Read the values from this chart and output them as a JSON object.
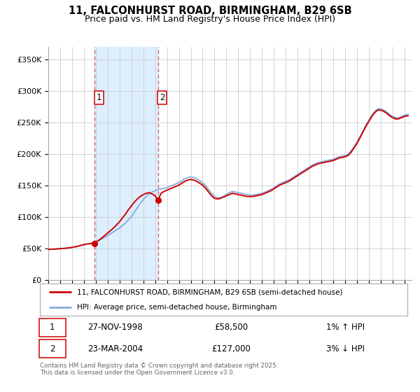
{
  "title": "11, FALCONHURST ROAD, BIRMINGHAM, B29 6SB",
  "subtitle": "Price paid vs. HM Land Registry's House Price Index (HPI)",
  "title_fontsize": 10.5,
  "subtitle_fontsize": 9,
  "background_color": "#ffffff",
  "grid_color": "#cccccc",
  "ylabel_values": [
    "£0",
    "£50K",
    "£100K",
    "£150K",
    "£200K",
    "£250K",
    "£300K",
    "£350K"
  ],
  "ytick_values": [
    0,
    50000,
    100000,
    150000,
    200000,
    250000,
    300000,
    350000
  ],
  "ylim": [
    0,
    370000
  ],
  "xlim_start": 1995.0,
  "xlim_end": 2025.6,
  "sale1_date": 1998.91,
  "sale1_price": 58500,
  "sale1_label": "1",
  "sale2_date": 2004.23,
  "sale2_price": 127000,
  "sale2_label": "2",
  "shade_color": "#ddeeff",
  "dashed_line_color": "#d05555",
  "property_line_color": "#cc0000",
  "hpi_line_color": "#88aadd",
  "legend_property": "11, FALCONHURST ROAD, BIRMINGHAM, B29 6SB (semi-detached house)",
  "legend_hpi": "HPI: Average price, semi-detached house, Birmingham",
  "annotation1_date": "27-NOV-1998",
  "annotation1_price": "£58,500",
  "annotation1_hpi": "1% ↑ HPI",
  "annotation2_date": "23-MAR-2004",
  "annotation2_price": "£127,000",
  "annotation2_hpi": "3% ↓ HPI",
  "footer": "Contains HM Land Registry data © Crown copyright and database right 2025.\nThis data is licensed under the Open Government Licence v3.0.",
  "hpi_data": [
    [
      1995.0,
      49000
    ],
    [
      1995.25,
      49200
    ],
    [
      1995.5,
      49500
    ],
    [
      1995.75,
      49800
    ],
    [
      1996.0,
      50200
    ],
    [
      1996.25,
      50500
    ],
    [
      1996.5,
      51000
    ],
    [
      1996.75,
      51500
    ],
    [
      1997.0,
      52200
    ],
    [
      1997.25,
      53000
    ],
    [
      1997.5,
      54000
    ],
    [
      1997.75,
      55500
    ],
    [
      1998.0,
      56500
    ],
    [
      1998.25,
      57500
    ],
    [
      1998.5,
      58500
    ],
    [
      1998.75,
      59500
    ],
    [
      1999.0,
      61000
    ],
    [
      1999.25,
      63000
    ],
    [
      1999.5,
      65500
    ],
    [
      1999.75,
      68000
    ],
    [
      2000.0,
      71000
    ],
    [
      2000.25,
      74000
    ],
    [
      2000.5,
      77000
    ],
    [
      2000.75,
      80000
    ],
    [
      2001.0,
      83000
    ],
    [
      2001.25,
      87000
    ],
    [
      2001.5,
      91000
    ],
    [
      2001.75,
      96000
    ],
    [
      2002.0,
      101000
    ],
    [
      2002.25,
      108000
    ],
    [
      2002.5,
      115000
    ],
    [
      2002.75,
      122000
    ],
    [
      2003.0,
      128000
    ],
    [
      2003.25,
      133000
    ],
    [
      2003.5,
      137000
    ],
    [
      2003.75,
      140000
    ],
    [
      2004.0,
      142000
    ],
    [
      2004.25,
      144000
    ],
    [
      2004.5,
      145000
    ],
    [
      2004.75,
      146000
    ],
    [
      2005.0,
      147000
    ],
    [
      2005.25,
      149000
    ],
    [
      2005.5,
      151000
    ],
    [
      2005.75,
      153000
    ],
    [
      2006.0,
      155000
    ],
    [
      2006.25,
      158000
    ],
    [
      2006.5,
      161000
    ],
    [
      2006.75,
      163000
    ],
    [
      2007.0,
      164000
    ],
    [
      2007.25,
      163000
    ],
    [
      2007.5,
      161000
    ],
    [
      2007.75,
      158000
    ],
    [
      2008.0,
      155000
    ],
    [
      2008.25,
      150000
    ],
    [
      2008.5,
      144000
    ],
    [
      2008.75,
      138000
    ],
    [
      2009.0,
      133000
    ],
    [
      2009.25,
      131000
    ],
    [
      2009.5,
      131000
    ],
    [
      2009.75,
      133000
    ],
    [
      2010.0,
      136000
    ],
    [
      2010.25,
      139000
    ],
    [
      2010.5,
      141000
    ],
    [
      2010.75,
      140000
    ],
    [
      2011.0,
      139000
    ],
    [
      2011.25,
      138000
    ],
    [
      2011.5,
      137000
    ],
    [
      2011.75,
      136000
    ],
    [
      2012.0,
      135000
    ],
    [
      2012.25,
      135000
    ],
    [
      2012.5,
      136000
    ],
    [
      2012.75,
      137000
    ],
    [
      2013.0,
      138000
    ],
    [
      2013.25,
      140000
    ],
    [
      2013.5,
      142000
    ],
    [
      2013.75,
      144000
    ],
    [
      2014.0,
      147000
    ],
    [
      2014.25,
      150000
    ],
    [
      2014.5,
      153000
    ],
    [
      2014.75,
      155000
    ],
    [
      2015.0,
      157000
    ],
    [
      2015.25,
      159000
    ],
    [
      2015.5,
      162000
    ],
    [
      2015.75,
      165000
    ],
    [
      2016.0,
      168000
    ],
    [
      2016.25,
      171000
    ],
    [
      2016.5,
      174000
    ],
    [
      2016.75,
      177000
    ],
    [
      2017.0,
      180000
    ],
    [
      2017.25,
      183000
    ],
    [
      2017.5,
      185000
    ],
    [
      2017.75,
      187000
    ],
    [
      2018.0,
      188000
    ],
    [
      2018.25,
      189000
    ],
    [
      2018.5,
      190000
    ],
    [
      2018.75,
      191000
    ],
    [
      2019.0,
      192000
    ],
    [
      2019.25,
      194000
    ],
    [
      2019.5,
      196000
    ],
    [
      2019.75,
      197000
    ],
    [
      2020.0,
      198000
    ],
    [
      2020.25,
      200000
    ],
    [
      2020.5,
      205000
    ],
    [
      2020.75,
      212000
    ],
    [
      2021.0,
      219000
    ],
    [
      2021.25,
      228000
    ],
    [
      2021.5,
      237000
    ],
    [
      2021.75,
      246000
    ],
    [
      2022.0,
      254000
    ],
    [
      2022.25,
      262000
    ],
    [
      2022.5,
      268000
    ],
    [
      2022.75,
      272000
    ],
    [
      2023.0,
      272000
    ],
    [
      2023.25,
      270000
    ],
    [
      2023.5,
      267000
    ],
    [
      2023.75,
      263000
    ],
    [
      2024.0,
      260000
    ],
    [
      2024.25,
      258000
    ],
    [
      2024.5,
      258000
    ],
    [
      2024.75,
      260000
    ],
    [
      2025.0,
      262000
    ],
    [
      2025.3,
      263000
    ]
  ],
  "property_data": [
    [
      1995.0,
      49000
    ],
    [
      1995.25,
      49200
    ],
    [
      1995.5,
      49500
    ],
    [
      1995.75,
      49800
    ],
    [
      1996.0,
      50200
    ],
    [
      1996.25,
      50500
    ],
    [
      1996.5,
      51000
    ],
    [
      1996.75,
      51500
    ],
    [
      1997.0,
      52200
    ],
    [
      1997.25,
      53000
    ],
    [
      1997.5,
      54000
    ],
    [
      1997.75,
      55500
    ],
    [
      1998.0,
      56500
    ],
    [
      1998.25,
      57500
    ],
    [
      1998.5,
      58000
    ],
    [
      1998.75,
      58500
    ],
    [
      1998.91,
      58500
    ],
    [
      1999.0,
      60500
    ],
    [
      1999.25,
      63500
    ],
    [
      1999.5,
      67000
    ],
    [
      1999.75,
      71000
    ],
    [
      2000.0,
      75000
    ],
    [
      2000.25,
      79000
    ],
    [
      2000.5,
      83000
    ],
    [
      2000.75,
      88000
    ],
    [
      2001.0,
      93000
    ],
    [
      2001.25,
      99000
    ],
    [
      2001.5,
      105000
    ],
    [
      2001.75,
      112000
    ],
    [
      2002.0,
      118000
    ],
    [
      2002.25,
      124000
    ],
    [
      2002.5,
      129000
    ],
    [
      2002.75,
      133000
    ],
    [
      2003.0,
      136000
    ],
    [
      2003.25,
      138000
    ],
    [
      2003.5,
      139000
    ],
    [
      2003.75,
      137000
    ],
    [
      2004.0,
      134000
    ],
    [
      2004.23,
      127000
    ],
    [
      2004.5,
      138000
    ],
    [
      2004.75,
      141000
    ],
    [
      2005.0,
      143000
    ],
    [
      2005.25,
      145000
    ],
    [
      2005.5,
      147000
    ],
    [
      2005.75,
      149000
    ],
    [
      2006.0,
      151000
    ],
    [
      2006.25,
      154000
    ],
    [
      2006.5,
      157000
    ],
    [
      2006.75,
      159000
    ],
    [
      2007.0,
      160000
    ],
    [
      2007.25,
      159000
    ],
    [
      2007.5,
      157000
    ],
    [
      2007.75,
      154000
    ],
    [
      2008.0,
      151000
    ],
    [
      2008.25,
      146000
    ],
    [
      2008.5,
      140000
    ],
    [
      2008.75,
      134000
    ],
    [
      2009.0,
      130000
    ],
    [
      2009.25,
      129000
    ],
    [
      2009.5,
      130000
    ],
    [
      2009.75,
      132000
    ],
    [
      2010.0,
      134000
    ],
    [
      2010.25,
      136000
    ],
    [
      2010.5,
      138000
    ],
    [
      2010.75,
      137000
    ],
    [
      2011.0,
      136000
    ],
    [
      2011.25,
      135000
    ],
    [
      2011.5,
      134000
    ],
    [
      2011.75,
      133000
    ],
    [
      2012.0,
      133000
    ],
    [
      2012.25,
      133000
    ],
    [
      2012.5,
      134000
    ],
    [
      2012.75,
      135000
    ],
    [
      2013.0,
      136000
    ],
    [
      2013.25,
      138000
    ],
    [
      2013.5,
      140000
    ],
    [
      2013.75,
      142000
    ],
    [
      2014.0,
      145000
    ],
    [
      2014.25,
      148000
    ],
    [
      2014.5,
      151000
    ],
    [
      2014.75,
      153000
    ],
    [
      2015.0,
      155000
    ],
    [
      2015.25,
      157000
    ],
    [
      2015.5,
      160000
    ],
    [
      2015.75,
      163000
    ],
    [
      2016.0,
      166000
    ],
    [
      2016.25,
      169000
    ],
    [
      2016.5,
      172000
    ],
    [
      2016.75,
      175000
    ],
    [
      2017.0,
      178000
    ],
    [
      2017.25,
      181000
    ],
    [
      2017.5,
      183000
    ],
    [
      2017.75,
      185000
    ],
    [
      2018.0,
      186000
    ],
    [
      2018.25,
      187000
    ],
    [
      2018.5,
      188000
    ],
    [
      2018.75,
      189000
    ],
    [
      2019.0,
      190000
    ],
    [
      2019.25,
      192000
    ],
    [
      2019.5,
      194000
    ],
    [
      2019.75,
      195000
    ],
    [
      2020.0,
      196000
    ],
    [
      2020.25,
      198000
    ],
    [
      2020.5,
      203000
    ],
    [
      2020.75,
      210000
    ],
    [
      2021.0,
      217000
    ],
    [
      2021.25,
      226000
    ],
    [
      2021.5,
      235000
    ],
    [
      2021.75,
      244000
    ],
    [
      2022.0,
      252000
    ],
    [
      2022.25,
      260000
    ],
    [
      2022.5,
      266000
    ],
    [
      2022.75,
      270000
    ],
    [
      2023.0,
      270000
    ],
    [
      2023.25,
      268000
    ],
    [
      2023.5,
      265000
    ],
    [
      2023.75,
      261000
    ],
    [
      2024.0,
      258000
    ],
    [
      2024.25,
      256000
    ],
    [
      2024.5,
      256000
    ],
    [
      2024.75,
      258000
    ],
    [
      2025.0,
      260000
    ],
    [
      2025.3,
      261000
    ]
  ]
}
